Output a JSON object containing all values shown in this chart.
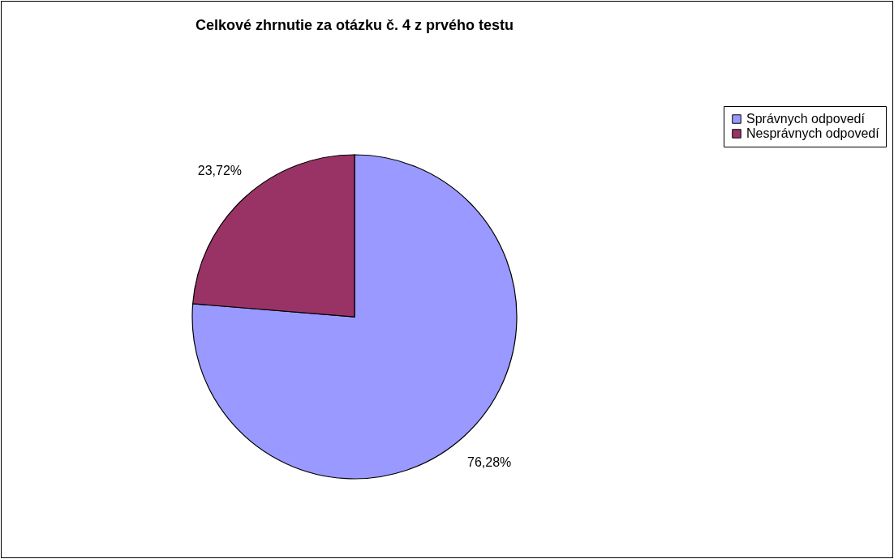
{
  "chart_data": {
    "type": "pie",
    "title": "Celkové zhrnutie za otázku č. 4 z prvého testu",
    "categories": [
      "Správnych odpovedí",
      "Nesprávnych odpovedí"
    ],
    "values": [
      76.28,
      23.72
    ],
    "value_labels": [
      "76,28%",
      "23,72%"
    ],
    "colors": [
      "#9999ff",
      "#993366"
    ],
    "legend": "right"
  }
}
